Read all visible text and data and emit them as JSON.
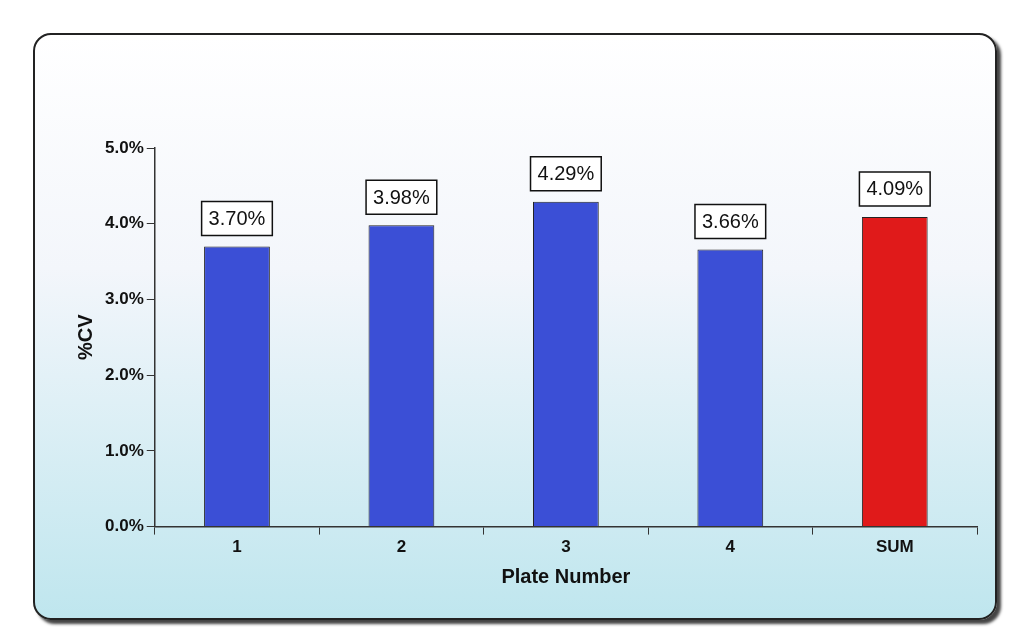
{
  "chart_data": {
    "type": "bar",
    "xlabel": "Plate Number",
    "ylabel": "%CV",
    "categories": [
      "1",
      "2",
      "3",
      "4",
      "SUM"
    ],
    "values": [
      3.7,
      3.98,
      4.29,
      3.66,
      4.09
    ],
    "colors": [
      "#3b4fd6",
      "#3b4fd6",
      "#3b4fd6",
      "#3b4fd6",
      "#e01a1a"
    ],
    "value_labels": [
      "3.70%",
      "3.98%",
      "4.29%",
      "3.66%",
      "4.09%"
    ],
    "ylim": [
      0,
      5
    ],
    "yticks": [
      {
        "value": 0,
        "label": "0.0%"
      },
      {
        "value": 1,
        "label": "1.0%"
      },
      {
        "value": 2,
        "label": "2.0%"
      },
      {
        "value": 3,
        "label": "3.0%"
      },
      {
        "value": 4,
        "label": "4.0%"
      },
      {
        "value": 5,
        "label": "5.0%"
      }
    ],
    "grid": false,
    "legend": false
  }
}
